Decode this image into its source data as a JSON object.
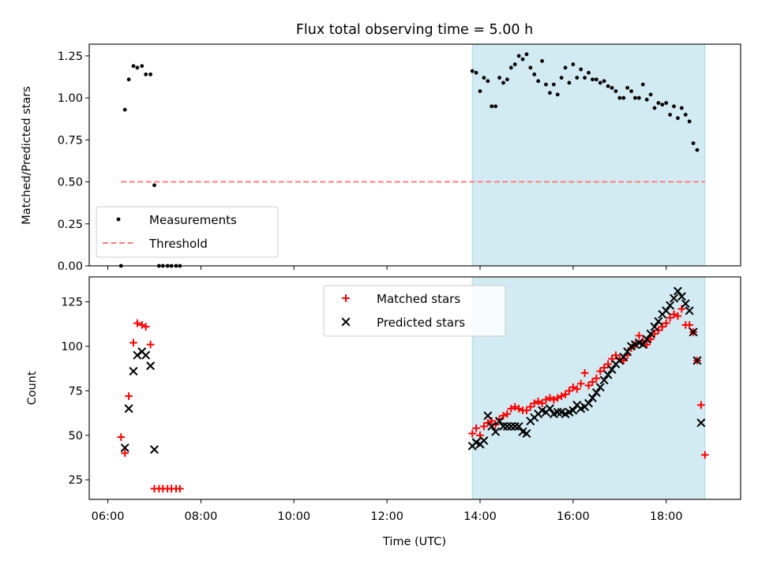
{
  "chart_data": [
    {
      "type": "scatter",
      "title": "Flux total observing time = 5.00 h",
      "xlabel": "",
      "ylabel": "Matched/Predicted stars",
      "xlim": [
        "05:36",
        "19:36"
      ],
      "ylim": [
        0,
        1.32
      ],
      "yticks": [
        "0.00",
        "0.25",
        "0.50",
        "0.75",
        "1.00",
        "1.25"
      ],
      "shaded_interval": [
        "13:50",
        "18:50"
      ],
      "shade_color": "#add8e6",
      "legend": {
        "placement": "lower-left",
        "entries": [
          "Measurements",
          "Threshold"
        ]
      },
      "series": [
        {
          "name": "Measurements",
          "marker": "dot",
          "color": "#000000",
          "points": [
            [
              "06:17",
              0.0
            ],
            [
              "06:22",
              0.93
            ],
            [
              "06:27",
              1.11
            ],
            [
              "06:33",
              1.19
            ],
            [
              "06:38",
              1.18
            ],
            [
              "06:44",
              1.19
            ],
            [
              "06:49",
              1.14
            ],
            [
              "06:55",
              1.14
            ],
            [
              "07:00",
              0.48
            ],
            [
              "07:06",
              0.0
            ],
            [
              "07:11",
              0.0
            ],
            [
              "07:17",
              0.0
            ],
            [
              "07:22",
              0.0
            ],
            [
              "07:28",
              0.0
            ],
            [
              "07:33",
              0.0
            ],
            [
              "13:50",
              1.16
            ],
            [
              "13:55",
              1.15
            ],
            [
              "14:00",
              1.04
            ],
            [
              "14:05",
              1.12
            ],
            [
              "14:10",
              1.1
            ],
            [
              "14:15",
              0.95
            ],
            [
              "14:20",
              0.95
            ],
            [
              "14:25",
              1.12
            ],
            [
              "14:30",
              1.09
            ],
            [
              "14:35",
              1.11
            ],
            [
              "14:40",
              1.18
            ],
            [
              "14:45",
              1.2
            ],
            [
              "14:50",
              1.25
            ],
            [
              "14:55",
              1.23
            ],
            [
              "15:00",
              1.26
            ],
            [
              "15:05",
              1.18
            ],
            [
              "15:10",
              1.14
            ],
            [
              "15:15",
              1.1
            ],
            [
              "15:20",
              1.22
            ],
            [
              "15:25",
              1.08
            ],
            [
              "15:30",
              1.03
            ],
            [
              "15:35",
              1.08
            ],
            [
              "15:40",
              1.02
            ],
            [
              "15:45",
              1.12
            ],
            [
              "15:50",
              1.18
            ],
            [
              "15:55",
              1.09
            ],
            [
              "16:00",
              1.2
            ],
            [
              "16:05",
              1.12
            ],
            [
              "16:10",
              1.17
            ],
            [
              "16:15",
              1.12
            ],
            [
              "16:20",
              1.15
            ],
            [
              "16:25",
              1.11
            ],
            [
              "16:30",
              1.11
            ],
            [
              "16:35",
              1.09
            ],
            [
              "16:40",
              1.1
            ],
            [
              "16:45",
              1.07
            ],
            [
              "16:50",
              1.06
            ],
            [
              "16:55",
              1.04
            ],
            [
              "17:00",
              1.0
            ],
            [
              "17:05",
              1.0
            ],
            [
              "17:10",
              1.06
            ],
            [
              "17:15",
              1.04
            ],
            [
              "17:20",
              1.0
            ],
            [
              "17:25",
              1.0
            ],
            [
              "17:30",
              1.08
            ],
            [
              "17:35",
              0.99
            ],
            [
              "17:40",
              1.02
            ],
            [
              "17:45",
              0.94
            ],
            [
              "17:50",
              0.97
            ],
            [
              "17:55",
              0.96
            ],
            [
              "18:00",
              0.97
            ],
            [
              "18:05",
              0.9
            ],
            [
              "18:10",
              0.95
            ],
            [
              "18:15",
              0.88
            ],
            [
              "18:20",
              0.94
            ],
            [
              "18:25",
              0.9
            ],
            [
              "18:30",
              0.86
            ],
            [
              "18:35",
              0.73
            ],
            [
              "18:40",
              0.69
            ]
          ]
        },
        {
          "name": "Threshold",
          "marker": "dashed-line",
          "color": "#ff7f7f",
          "points": [
            [
              "06:17",
              0.5
            ],
            [
              "18:50",
              0.5
            ]
          ]
        }
      ]
    },
    {
      "type": "scatter",
      "title": "",
      "xlabel": "Time (UTC)",
      "ylabel": "Count",
      "xlim": [
        "05:36",
        "19:36"
      ],
      "ylim": [
        14,
        139
      ],
      "xticks": [
        "06:00",
        "08:00",
        "10:00",
        "12:00",
        "14:00",
        "16:00",
        "18:00"
      ],
      "yticks": [
        "25",
        "50",
        "75",
        "100",
        "125"
      ],
      "shaded_interval": [
        "13:50",
        "18:50"
      ],
      "shade_color": "#add8e6",
      "legend": {
        "placement": "upper-center",
        "entries": [
          "Matched stars",
          "Predicted stars"
        ]
      },
      "series": [
        {
          "name": "Matched stars",
          "marker": "plus",
          "color": "#ff0000",
          "points": [
            [
              "06:17",
              49
            ],
            [
              "06:22",
              40
            ],
            [
              "06:27",
              72
            ],
            [
              "06:33",
              102
            ],
            [
              "06:38",
              113
            ],
            [
              "06:44",
              112
            ],
            [
              "06:49",
              111
            ],
            [
              "06:55",
              101
            ],
            [
              "07:00",
              20
            ],
            [
              "07:06",
              20
            ],
            [
              "07:11",
              20
            ],
            [
              "07:17",
              20
            ],
            [
              "07:22",
              20
            ],
            [
              "07:28",
              20
            ],
            [
              "07:33",
              20
            ],
            [
              "13:50",
              51
            ],
            [
              "13:55",
              54
            ],
            [
              "14:00",
              50
            ],
            [
              "14:05",
              55
            ],
            [
              "14:10",
              57
            ],
            [
              "14:15",
              58
            ],
            [
              "14:20",
              56
            ],
            [
              "14:25",
              59
            ],
            [
              "14:30",
              61
            ],
            [
              "14:35",
              62
            ],
            [
              "14:40",
              65
            ],
            [
              "14:45",
              66
            ],
            [
              "14:50",
              65
            ],
            [
              "14:55",
              64
            ],
            [
              "15:00",
              64
            ],
            [
              "15:05",
              66
            ],
            [
              "15:10",
              68
            ],
            [
              "15:15",
              69
            ],
            [
              "15:20",
              68
            ],
            [
              "15:25",
              70
            ],
            [
              "15:30",
              71
            ],
            [
              "15:35",
              70
            ],
            [
              "15:40",
              71
            ],
            [
              "15:45",
              72
            ],
            [
              "15:50",
              73
            ],
            [
              "15:55",
              75
            ],
            [
              "16:00",
              77
            ],
            [
              "16:05",
              76
            ],
            [
              "16:10",
              79
            ],
            [
              "16:15",
              85
            ],
            [
              "16:20",
              78
            ],
            [
              "16:25",
              80
            ],
            [
              "16:30",
              82
            ],
            [
              "16:35",
              86
            ],
            [
              "16:40",
              88
            ],
            [
              "16:45",
              90
            ],
            [
              "16:50",
              93
            ],
            [
              "16:55",
              95
            ],
            [
              "17:00",
              93
            ],
            [
              "17:05",
              92
            ],
            [
              "17:10",
              95
            ],
            [
              "17:15",
              99
            ],
            [
              "17:20",
              101
            ],
            [
              "17:25",
              106
            ],
            [
              "17:30",
              103
            ],
            [
              "17:35",
              101
            ],
            [
              "17:40",
              104
            ],
            [
              "17:45",
              107
            ],
            [
              "17:50",
              109
            ],
            [
              "17:55",
              111
            ],
            [
              "18:00",
              113
            ],
            [
              "18:05",
              116
            ],
            [
              "18:10",
              118
            ],
            [
              "18:15",
              117
            ],
            [
              "18:20",
              121
            ],
            [
              "18:25",
              112
            ],
            [
              "18:30",
              112
            ],
            [
              "18:35",
              108
            ],
            [
              "18:40",
              92
            ],
            [
              "18:45",
              67
            ],
            [
              "18:50",
              39
            ]
          ]
        },
        {
          "name": "Predicted stars",
          "marker": "x",
          "color": "#000000",
          "points": [
            [
              "06:22",
              43
            ],
            [
              "06:27",
              65
            ],
            [
              "06:33",
              86
            ],
            [
              "06:38",
              95
            ],
            [
              "06:44",
              97
            ],
            [
              "06:49",
              95
            ],
            [
              "06:55",
              89
            ],
            [
              "07:00",
              42
            ],
            [
              "13:50",
              44
            ],
            [
              "13:55",
              46
            ],
            [
              "14:00",
              45
            ],
            [
              "14:05",
              47
            ],
            [
              "14:10",
              61
            ],
            [
              "14:15",
              55
            ],
            [
              "14:20",
              52
            ],
            [
              "14:25",
              58
            ],
            [
              "14:30",
              55
            ],
            [
              "14:35",
              55
            ],
            [
              "14:40",
              55
            ],
            [
              "14:45",
              55
            ],
            [
              "14:50",
              55
            ],
            [
              "14:55",
              52
            ],
            [
              "15:00",
              51
            ],
            [
              "15:05",
              58
            ],
            [
              "15:10",
              60
            ],
            [
              "15:15",
              62
            ],
            [
              "15:20",
              64
            ],
            [
              "15:25",
              63
            ],
            [
              "15:30",
              65
            ],
            [
              "15:35",
              62
            ],
            [
              "15:40",
              63
            ],
            [
              "15:45",
              63
            ],
            [
              "15:50",
              62
            ],
            [
              "15:55",
              63
            ],
            [
              "16:00",
              64
            ],
            [
              "16:05",
              67
            ],
            [
              "16:10",
              65
            ],
            [
              "16:15",
              66
            ],
            [
              "16:20",
              68
            ],
            [
              "16:25",
              71
            ],
            [
              "16:30",
              74
            ],
            [
              "16:35",
              77
            ],
            [
              "16:40",
              81
            ],
            [
              "16:45",
              84
            ],
            [
              "16:50",
              87
            ],
            [
              "16:55",
              90
            ],
            [
              "17:00",
              92
            ],
            [
              "17:05",
              94
            ],
            [
              "17:10",
              97
            ],
            [
              "17:15",
              100
            ],
            [
              "17:20",
              101
            ],
            [
              "17:25",
              102
            ],
            [
              "17:30",
              101
            ],
            [
              "17:35",
              104
            ],
            [
              "17:40",
              107
            ],
            [
              "17:45",
              111
            ],
            [
              "17:50",
              114
            ],
            [
              "17:55",
              118
            ],
            [
              "18:00",
              120
            ],
            [
              "18:05",
              123
            ],
            [
              "18:10",
              127
            ],
            [
              "18:15",
              131
            ],
            [
              "18:20",
              128
            ],
            [
              "18:25",
              124
            ],
            [
              "18:30",
              120
            ],
            [
              "18:35",
              108
            ],
            [
              "18:40",
              92
            ],
            [
              "18:45",
              57
            ]
          ]
        }
      ]
    }
  ]
}
